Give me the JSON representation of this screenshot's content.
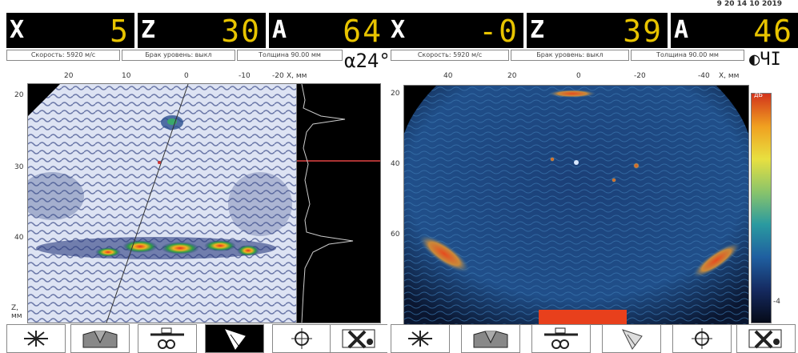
{
  "left": {
    "readouts": [
      {
        "label": "X",
        "value": "5"
      },
      {
        "label": "Z",
        "value": "30"
      },
      {
        "label": "A",
        "value": "64"
      }
    ],
    "info": [
      "Скорость: 5920 м/с",
      "Брак уровень: выкл",
      "Толщина 90.00 мм"
    ],
    "angle_text": "α24°",
    "x_ticks": [
      "20",
      "10",
      "0",
      "-10",
      "-20"
    ],
    "x_unit": "X, мм",
    "y_ticks": [
      "20",
      "30",
      "40"
    ],
    "y_unit": "Z, мм"
  },
  "right": {
    "date_text": "9 20   14 10 2019",
    "readouts": [
      {
        "label": "X",
        "value": "-0"
      },
      {
        "label": "Z",
        "value": "39"
      },
      {
        "label": "A",
        "value": "46"
      }
    ],
    "info": [
      "Скорость: 5920 м/с",
      "Брак уровень: выкл",
      "Толщина 90.00 мм"
    ],
    "mode_text": "◐ЧІ",
    "x_ticks": [
      "40",
      "20",
      "0",
      "-20",
      "-40"
    ],
    "x_unit": "X, мм",
    "y_ticks": [
      "20",
      "40",
      "60"
    ],
    "colorbar_label": "дБ",
    "colorbar_bottom": "-4"
  },
  "toolbar": {
    "icons": [
      "crosshair-icon",
      "weld-profile-icon",
      "probe-icon",
      "sector-scan-icon",
      "calibration-icon",
      "close-mode-icon"
    ]
  }
}
